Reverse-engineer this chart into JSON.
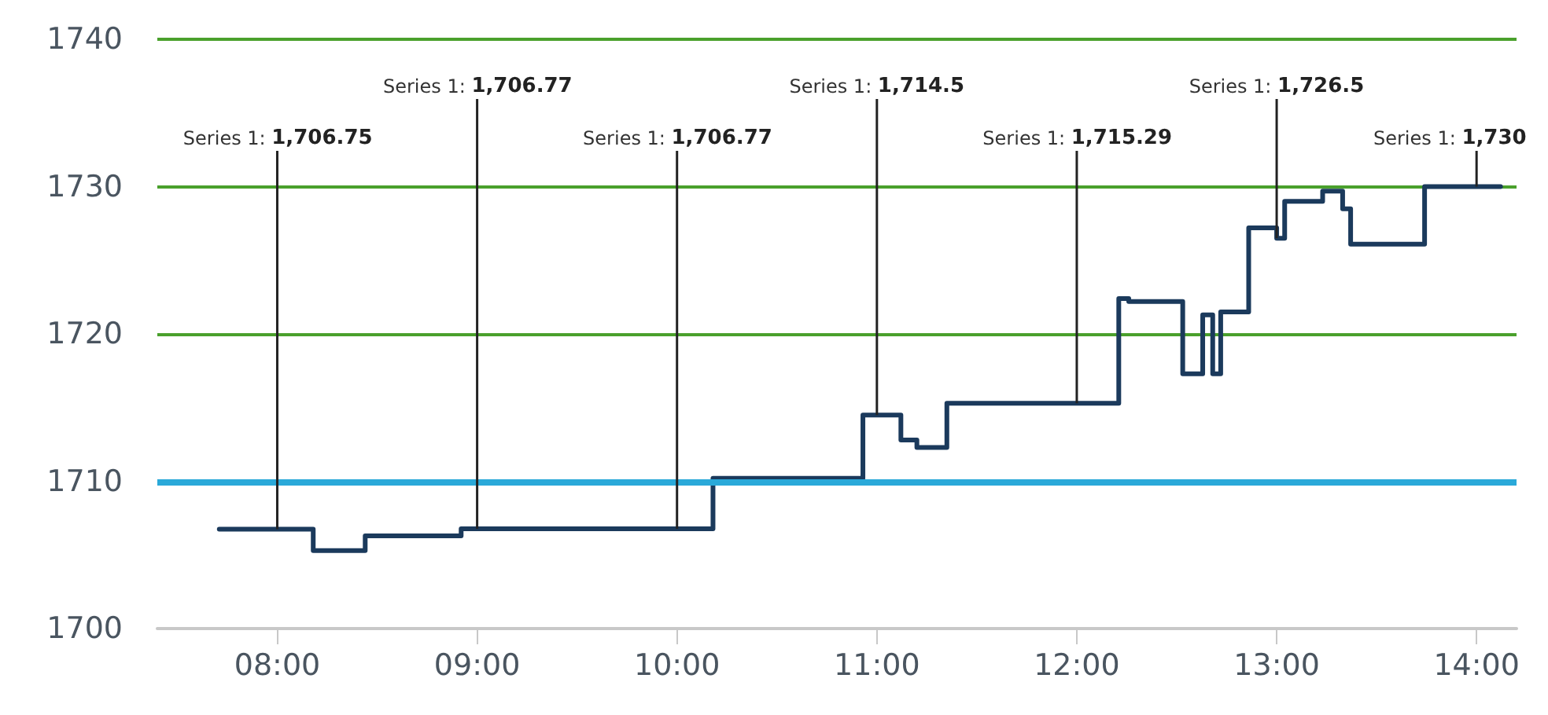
{
  "chart_data": {
    "type": "step",
    "x": [
      7.71,
      8.18,
      8.44,
      8.92,
      10.18,
      10.93,
      11.12,
      11.2,
      11.35,
      12.21,
      12.26,
      12.53,
      12.63,
      12.68,
      12.72,
      12.86,
      13.0,
      13.04,
      13.23,
      13.33,
      13.37,
      13.74,
      14.12
    ],
    "series": [
      {
        "color": "#1b3a5c",
        "values": [
          1706.75,
          1705.3,
          1706.3,
          1706.77,
          1710.2,
          1714.5,
          1712.8,
          1712.3,
          1715.29,
          1722.4,
          1722.2,
          1717.3,
          1721.3,
          1717.3,
          1721.5,
          1727.2,
          1726.5,
          1729.0,
          1729.7,
          1728.5,
          1726.1,
          1730,
          1730
        ]
      }
    ],
    "xlim": [
      7.4,
      14.2
    ],
    "xticks": [
      {
        "value": 8,
        "label": "08:00"
      },
      {
        "value": 9,
        "label": "09:00"
      },
      {
        "value": 10,
        "label": "10:00"
      },
      {
        "value": 11,
        "label": "11:00"
      },
      {
        "value": 12,
        "label": "12:00"
      },
      {
        "value": 13,
        "label": "13:00"
      },
      {
        "value": 14,
        "label": "14:00"
      }
    ],
    "ylim": [
      1700,
      1740
    ],
    "yticks": [
      1700,
      1710,
      1720,
      1730,
      1740
    ],
    "ref_lines": [
      {
        "axis": "y",
        "value": 1710,
        "color": "#2aa9d9"
      }
    ],
    "annotations": [
      {
        "text": "Series 1: 1,706.75",
        "x": 8,
        "y": 1706.75
      },
      {
        "text": "Series 1: 1,706.77",
        "x": 9,
        "y": 1706.77
      },
      {
        "text": "Series 1: 1,706.77",
        "x": 10,
        "y": 1706.77
      },
      {
        "text": "Series 1: 1,714.5",
        "x": 11,
        "y": 1714.5
      },
      {
        "text": "Series 1: 1,715.29",
        "x": 12,
        "y": 1715.29
      },
      {
        "text": "Series 1: 1,726.5",
        "x": 13,
        "y": 1726.5
      },
      {
        "text": "Series 1: 1,730",
        "x": 14,
        "y": 1730
      }
    ],
    "grid": "y",
    "marker": "none",
    "line_style": "solid"
  }
}
